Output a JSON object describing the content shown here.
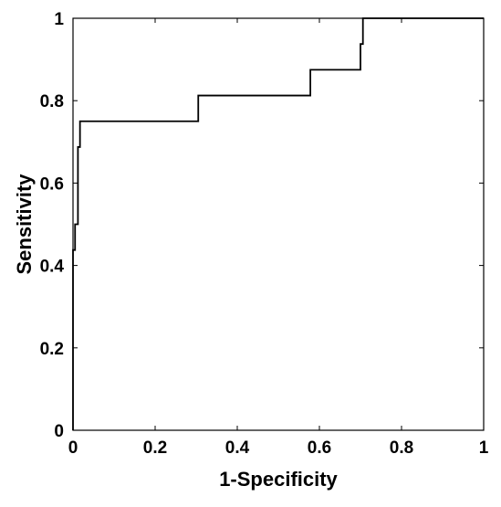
{
  "chart_data": {
    "type": "line",
    "title": "",
    "xlabel": "1-Specificity",
    "ylabel": "Sensitivity",
    "xlim": [
      0,
      1
    ],
    "ylim": [
      0,
      1
    ],
    "grid": false,
    "legend": "none",
    "x_ticks": [
      0,
      0.2,
      0.4,
      0.6,
      0.8,
      1
    ],
    "y_ticks": [
      0,
      0.2,
      0.4,
      0.6,
      0.8,
      1
    ],
    "x_tick_labels": [
      "0",
      "0.2",
      "0.4",
      "0.6",
      "0.8",
      "1"
    ],
    "y_tick_labels": [
      "0",
      "0.2",
      "0.4",
      "0.6",
      "0.8",
      "1"
    ],
    "series": [
      {
        "color": "#000000",
        "step": true,
        "x": [
          0,
          0,
          0.005,
          0.005,
          0.012,
          0.012,
          0.017,
          0.017,
          0.025,
          0.025,
          0.305,
          0.305,
          0.578,
          0.578,
          0.7,
          0.7,
          0.706,
          0.706,
          1
        ],
        "y": [
          0,
          0.4375,
          0.4375,
          0.5,
          0.5,
          0.6875,
          0.6875,
          0.75,
          0.75,
          0.75,
          0.75,
          0.8125,
          0.8125,
          0.875,
          0.875,
          0.9375,
          0.9375,
          1,
          1
        ]
      }
    ]
  }
}
